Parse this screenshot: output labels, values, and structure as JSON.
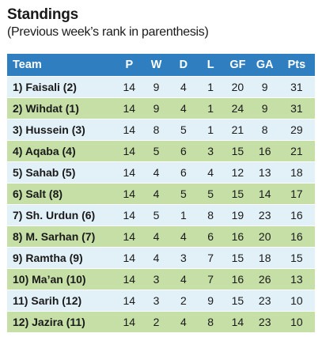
{
  "title": "Standings",
  "subtitle": "(Previous week’s rank in parenthesis)",
  "table": {
    "headers": [
      "Team",
      "P",
      "W",
      "D",
      "L",
      "GF",
      "GA",
      "Pts"
    ],
    "rows": [
      [
        "1) Faisali (2)",
        "14",
        "9",
        "4",
        "1",
        "20",
        "9",
        "31"
      ],
      [
        "2) Wihdat (1)",
        "14",
        "9",
        "4",
        "1",
        "24",
        "9",
        "31"
      ],
      [
        "3) Hussein (3)",
        "14",
        "8",
        "5",
        "1",
        "21",
        "8",
        "29"
      ],
      [
        "4) Aqaba (4)",
        "14",
        "5",
        "6",
        "3",
        "15",
        "16",
        "21"
      ],
      [
        "5) Sahab (5)",
        "14",
        "4",
        "6",
        "4",
        "12",
        "13",
        "18"
      ],
      [
        "6) Salt (8)",
        "14",
        "4",
        "5",
        "5",
        "15",
        "14",
        "17"
      ],
      [
        "7) Sh. Urdun (6)",
        "14",
        "5",
        "1",
        "8",
        "19",
        "23",
        "16"
      ],
      [
        "8) M. Sarhan (7)",
        "14",
        "4",
        "4",
        "6",
        "16",
        "20",
        "16"
      ],
      [
        "9) Ramtha (9)",
        "14",
        "4",
        "3",
        "7",
        "15",
        "18",
        "15"
      ],
      [
        "10) Ma’an (10)",
        "14",
        "3",
        "4",
        "7",
        "16",
        "26",
        "13"
      ],
      [
        "11) Sarih (12)",
        "14",
        "3",
        "2",
        "9",
        "15",
        "23",
        "10"
      ],
      [
        "12) Jazira (11)",
        "14",
        "2",
        "4",
        "8",
        "14",
        "23",
        "10"
      ]
    ]
  },
  "colors": {
    "header_bg": "#2f7fc0",
    "header_text": "#ffffff",
    "row_odd_bg": "#e2f1f8",
    "row_even_bg": "#c5dfa6"
  }
}
